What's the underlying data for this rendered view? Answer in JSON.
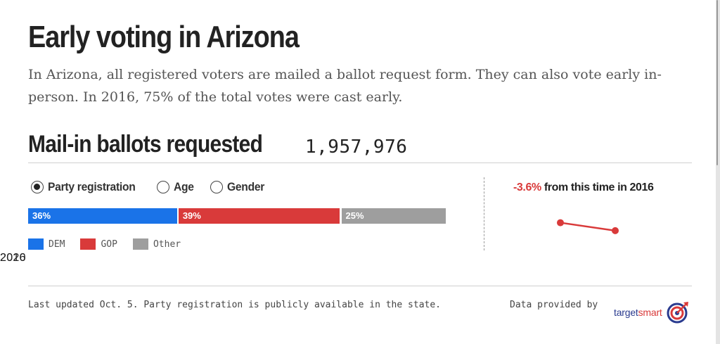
{
  "page": {
    "title": "Early voting in Arizona",
    "intro": "In Arizona, all registered voters are mailed a ballot request form. They can also vote early in-person. In 2016, 75% of the total votes were cast early."
  },
  "section": {
    "title": "Mail-in ballots requested",
    "total": "1,957,976"
  },
  "breakdown_options": [
    {
      "label": "Party registration",
      "selected": true
    },
    {
      "label": "Age",
      "selected": false
    },
    {
      "label": "Gender",
      "selected": false
    }
  ],
  "chart_data": [
    {
      "type": "bar",
      "orientation": "horizontal-stacked",
      "title": "Party registration",
      "categories": [
        "DEM",
        "GOP",
        "Other"
      ],
      "values": [
        36,
        39,
        25
      ],
      "value_labels": [
        "36%",
        "39%",
        "25%"
      ],
      "unit": "%",
      "colors": [
        "#1a73e8",
        "#d93a3a",
        "#9e9e9e"
      ],
      "legend": [
        "DEM",
        "GOP",
        "Other"
      ],
      "legend_placement": "bottom-left"
    },
    {
      "type": "line",
      "title": "-3.6% from this time in 2016",
      "x": [
        "2016",
        "2020"
      ],
      "values": [
        100,
        96.4
      ],
      "ylim": [
        90,
        104
      ],
      "color": "#d93a3a",
      "change": "-3.6%",
      "change_text": "from this time in 2016"
    }
  ],
  "footer": {
    "note": "Last updated Oct. 5. Party registration is publicly available in the state.",
    "provider_label": "Data provided by",
    "brand_part_a": "target",
    "brand_part_b": "smart",
    "brand_icon": "target-icon"
  },
  "colors": {
    "accent_red": "#d93a3a",
    "dem_blue": "#1a73e8",
    "other_gray": "#9e9e9e",
    "brand_navy": "#2a3b8f"
  }
}
